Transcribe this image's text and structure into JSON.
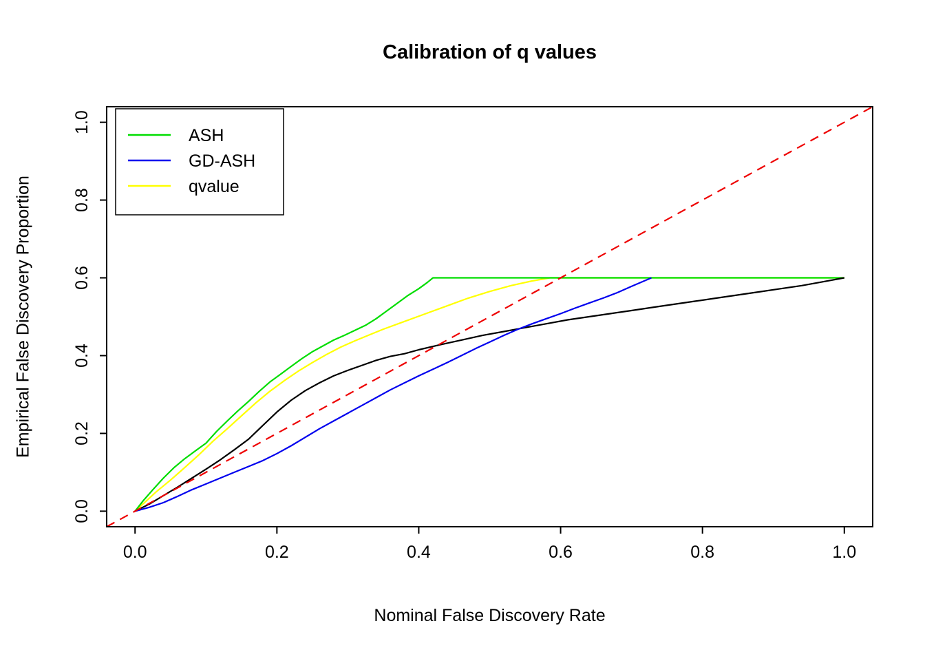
{
  "chart_data": {
    "type": "line",
    "title": "Calibration of q values",
    "xlabel": "Nominal False Discovery Rate",
    "ylabel": "Empirical False Discovery Proportion",
    "xlim": [
      -0.04,
      1.04
    ],
    "ylim": [
      -0.04,
      1.04
    ],
    "xticks": [
      0.0,
      0.2,
      0.4,
      0.6,
      0.8,
      1.0
    ],
    "yticks": [
      0.0,
      0.2,
      0.4,
      0.6,
      0.8,
      1.0
    ],
    "grid": false,
    "legend_position": "top-left",
    "legend": [
      {
        "label": "ASH",
        "color": "#00dd00"
      },
      {
        "label": "GD-ASH",
        "color": "#0000ee"
      },
      {
        "label": "qvalue",
        "color": "#ffff00"
      }
    ],
    "reference_line": {
      "name": "identity-line",
      "style": "dashed",
      "color": "#ee0000",
      "from": [
        -0.04,
        -0.04
      ],
      "to": [
        1.04,
        1.04
      ]
    },
    "series": [
      {
        "name": "qvalue",
        "color": "#ffff00",
        "points": [
          [
            0.0,
            0.0
          ],
          [
            0.015,
            0.025
          ],
          [
            0.03,
            0.05
          ],
          [
            0.05,
            0.08
          ],
          [
            0.07,
            0.112
          ],
          [
            0.09,
            0.145
          ],
          [
            0.11,
            0.18
          ],
          [
            0.13,
            0.212
          ],
          [
            0.15,
            0.245
          ],
          [
            0.17,
            0.278
          ],
          [
            0.19,
            0.308
          ],
          [
            0.21,
            0.335
          ],
          [
            0.23,
            0.36
          ],
          [
            0.25,
            0.382
          ],
          [
            0.27,
            0.403
          ],
          [
            0.29,
            0.422
          ],
          [
            0.31,
            0.438
          ],
          [
            0.33,
            0.453
          ],
          [
            0.35,
            0.468
          ],
          [
            0.38,
            0.488
          ],
          [
            0.41,
            0.508
          ],
          [
            0.44,
            0.528
          ],
          [
            0.47,
            0.548
          ],
          [
            0.5,
            0.565
          ],
          [
            0.53,
            0.58
          ],
          [
            0.56,
            0.592
          ],
          [
            0.585,
            0.6
          ],
          [
            1.0,
            0.6
          ]
        ]
      },
      {
        "name": "ASH",
        "color": "#00dd00",
        "points": [
          [
            0.0,
            0.0
          ],
          [
            0.012,
            0.028
          ],
          [
            0.025,
            0.055
          ],
          [
            0.04,
            0.085
          ],
          [
            0.055,
            0.112
          ],
          [
            0.07,
            0.135
          ],
          [
            0.085,
            0.155
          ],
          [
            0.1,
            0.175
          ],
          [
            0.115,
            0.205
          ],
          [
            0.13,
            0.232
          ],
          [
            0.145,
            0.258
          ],
          [
            0.16,
            0.282
          ],
          [
            0.175,
            0.308
          ],
          [
            0.19,
            0.332
          ],
          [
            0.205,
            0.352
          ],
          [
            0.22,
            0.372
          ],
          [
            0.235,
            0.392
          ],
          [
            0.25,
            0.41
          ],
          [
            0.265,
            0.425
          ],
          [
            0.28,
            0.44
          ],
          [
            0.295,
            0.452
          ],
          [
            0.31,
            0.465
          ],
          [
            0.325,
            0.478
          ],
          [
            0.34,
            0.495
          ],
          [
            0.355,
            0.515
          ],
          [
            0.37,
            0.535
          ],
          [
            0.385,
            0.555
          ],
          [
            0.4,
            0.572
          ],
          [
            0.412,
            0.588
          ],
          [
            0.42,
            0.6
          ],
          [
            1.0,
            0.6
          ]
        ]
      },
      {
        "name": "unlabeled-black",
        "color": "#000000",
        "points": [
          [
            0.0,
            0.0
          ],
          [
            0.02,
            0.018
          ],
          [
            0.04,
            0.04
          ],
          [
            0.06,
            0.062
          ],
          [
            0.08,
            0.085
          ],
          [
            0.1,
            0.108
          ],
          [
            0.12,
            0.132
          ],
          [
            0.14,
            0.158
          ],
          [
            0.16,
            0.185
          ],
          [
            0.18,
            0.22
          ],
          [
            0.2,
            0.255
          ],
          [
            0.22,
            0.285
          ],
          [
            0.24,
            0.31
          ],
          [
            0.26,
            0.33
          ],
          [
            0.28,
            0.348
          ],
          [
            0.3,
            0.362
          ],
          [
            0.32,
            0.375
          ],
          [
            0.34,
            0.388
          ],
          [
            0.36,
            0.398
          ],
          [
            0.38,
            0.405
          ],
          [
            0.4,
            0.415
          ],
          [
            0.43,
            0.428
          ],
          [
            0.46,
            0.44
          ],
          [
            0.49,
            0.452
          ],
          [
            0.52,
            0.462
          ],
          [
            0.55,
            0.472
          ],
          [
            0.58,
            0.482
          ],
          [
            0.61,
            0.492
          ],
          [
            0.64,
            0.5
          ],
          [
            0.67,
            0.508
          ],
          [
            0.7,
            0.516
          ],
          [
            0.73,
            0.524
          ],
          [
            0.76,
            0.532
          ],
          [
            0.79,
            0.54
          ],
          [
            0.82,
            0.548
          ],
          [
            0.85,
            0.556
          ],
          [
            0.88,
            0.564
          ],
          [
            0.91,
            0.572
          ],
          [
            0.94,
            0.58
          ],
          [
            0.97,
            0.59
          ],
          [
            1.0,
            0.6
          ]
        ]
      },
      {
        "name": "GD-ASH",
        "color": "#0000ee",
        "points": [
          [
            0.0,
            0.0
          ],
          [
            0.02,
            0.01
          ],
          [
            0.04,
            0.022
          ],
          [
            0.06,
            0.038
          ],
          [
            0.08,
            0.055
          ],
          [
            0.1,
            0.07
          ],
          [
            0.12,
            0.085
          ],
          [
            0.14,
            0.1
          ],
          [
            0.16,
            0.115
          ],
          [
            0.18,
            0.13
          ],
          [
            0.2,
            0.148
          ],
          [
            0.22,
            0.168
          ],
          [
            0.24,
            0.19
          ],
          [
            0.26,
            0.212
          ],
          [
            0.28,
            0.232
          ],
          [
            0.3,
            0.252
          ],
          [
            0.32,
            0.272
          ],
          [
            0.34,
            0.292
          ],
          [
            0.36,
            0.312
          ],
          [
            0.38,
            0.33
          ],
          [
            0.4,
            0.348
          ],
          [
            0.42,
            0.365
          ],
          [
            0.44,
            0.382
          ],
          [
            0.46,
            0.4
          ],
          [
            0.48,
            0.418
          ],
          [
            0.5,
            0.435
          ],
          [
            0.52,
            0.452
          ],
          [
            0.54,
            0.468
          ],
          [
            0.56,
            0.482
          ],
          [
            0.58,
            0.495
          ],
          [
            0.6,
            0.508
          ],
          [
            0.62,
            0.522
          ],
          [
            0.64,
            0.535
          ],
          [
            0.66,
            0.548
          ],
          [
            0.68,
            0.562
          ],
          [
            0.7,
            0.578
          ],
          [
            0.715,
            0.59
          ],
          [
            0.728,
            0.6
          ]
        ]
      }
    ]
  }
}
